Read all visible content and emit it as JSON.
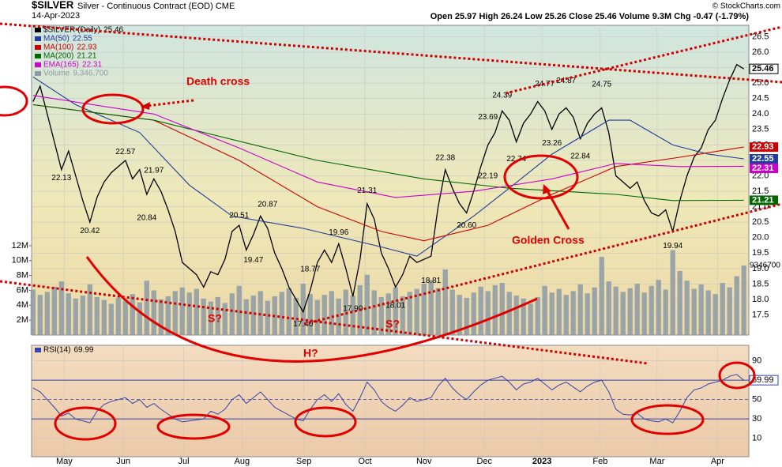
{
  "chart_data": {
    "type": "stock",
    "symbol": "$SILVER",
    "title": "Silver - Continuous Contract (EOD) CME",
    "date": "14-Apr-2023",
    "quote": "Open 25.97 High 26.24 Low 25.26 Close 25.46 Volume 9.3M Chg -0.47 (-1.79%)",
    "credit": "© StockCharts.com",
    "annotations": {
      "death_cross": "Death cross",
      "golden_cross": "Golden Cross",
      "s1": "S?",
      "s2": "S?",
      "h": "H?"
    },
    "xlim": [
      -0.2,
      100.7
    ],
    "xticks": [
      {
        "value": 4.4,
        "label": "May"
      },
      {
        "value": 12.7,
        "label": "Jun"
      },
      {
        "value": 21.2,
        "label": "Jul"
      },
      {
        "value": 29.4,
        "label": "Aug"
      },
      {
        "value": 38.1,
        "label": "Sep"
      },
      {
        "value": 46.7,
        "label": "Oct"
      },
      {
        "value": 55,
        "label": "Nov"
      },
      {
        "value": 63.5,
        "label": "Dec"
      },
      {
        "value": 71.6,
        "label": "2023"
      },
      {
        "value": 79.8,
        "label": "Feb"
      },
      {
        "value": 87.8,
        "label": "Mar"
      },
      {
        "value": 96.3,
        "label": "Apr"
      }
    ],
    "x": [
      0,
      1,
      2,
      3,
      4,
      5,
      6,
      7,
      8,
      9,
      10,
      11,
      12,
      13,
      14,
      15,
      16,
      17,
      18,
      19,
      20,
      21,
      22,
      23,
      24,
      25,
      26,
      27,
      28,
      29,
      30,
      31,
      32,
      33,
      34,
      35,
      36,
      37,
      38,
      39,
      40,
      41,
      42,
      43,
      44,
      45,
      46,
      47,
      48,
      49,
      50,
      51,
      52,
      53,
      54,
      55,
      56,
      57,
      58,
      59,
      60,
      61,
      62,
      63,
      64,
      65,
      66,
      67,
      68,
      69,
      70,
      71,
      72,
      73,
      74,
      75,
      76,
      77,
      78,
      79,
      80,
      81,
      82,
      83,
      84,
      85,
      86,
      87,
      88,
      89,
      90,
      91,
      92,
      93,
      94,
      95,
      96,
      97,
      98,
      99,
      100
    ],
    "ylim": [
      16.85,
      26.87
    ],
    "yticks": [
      17.5,
      {
        "value": 18,
        "label": "18.0"
      },
      18.5,
      {
        "value": 19,
        "label": "19.0"
      },
      19.5,
      {
        "value": 20,
        "label": "20.0"
      },
      20.5,
      {
        "value": 21,
        "label": "21.0"
      },
      21.5,
      {
        "value": 22,
        "label": "22.0"
      },
      22.5,
      {
        "value": 23,
        "label": "23.0"
      },
      23.5,
      {
        "value": 24,
        "label": "24.0"
      },
      24.5,
      {
        "value": 25,
        "label": "25.0"
      },
      25.5,
      {
        "value": 26,
        "label": "26.0"
      },
      26.5
    ],
    "series": [
      {
        "name": "$SILVER (Daily)",
        "color": "#000000",
        "values": [
          24.4,
          24.9,
          24.0,
          23.1,
          22.2,
          22.8,
          22.0,
          21.2,
          20.5,
          21.3,
          21.8,
          22.1,
          22.3,
          22.5,
          21.9,
          22.2,
          21.4,
          21.9,
          21.5,
          20.9,
          20.2,
          19.2,
          19.0,
          18.8,
          18.4,
          18.9,
          18.8,
          19.3,
          20.2,
          20.4,
          19.6,
          20.1,
          20.7,
          20.3,
          19.5,
          19.0,
          18.4,
          18.0,
          17.6,
          18.3,
          19.2,
          19.6,
          19.2,
          19.8,
          19.0,
          18.1,
          19.3,
          21.1,
          20.6,
          19.5,
          19.0,
          18.4,
          18.8,
          19.4,
          19.2,
          19.3,
          19.4,
          21.0,
          22.2,
          21.6,
          21.1,
          20.8,
          21.5,
          22.3,
          23.0,
          23.4,
          24.1,
          23.8,
          23.1,
          23.7,
          24.0,
          24.4,
          24.1,
          23.5,
          24.0,
          24.2,
          23.9,
          23.2,
          23.7,
          24.0,
          24.2,
          23.4,
          22.0,
          21.8,
          21.6,
          21.8,
          21.2,
          20.8,
          20.7,
          20.9,
          20.2,
          21.2,
          22.0,
          22.6,
          22.9,
          23.5,
          23.8,
          24.5,
          25.1,
          25.6,
          25.46
        ]
      },
      {
        "name": "MA(50)",
        "color": "#1f3d99",
        "x": [
          0,
          6,
          15,
          22,
          28,
          38,
          49,
          54,
          62,
          67,
          73,
          81,
          84,
          90,
          95,
          100
        ],
        "values": [
          25.2,
          24.3,
          23.4,
          21.7,
          20.7,
          20.3,
          19.7,
          19.4,
          20.7,
          21.6,
          22.7,
          23.8,
          23.8,
          23.0,
          22.7,
          22.55
        ]
      },
      {
        "name": "MA(100)",
        "color": "#cc0000",
        "x": [
          0,
          17,
          29,
          40,
          49,
          55,
          64,
          73,
          82,
          91,
          100
        ],
        "values": [
          24.3,
          23.8,
          22.5,
          21.0,
          20.2,
          19.9,
          20.4,
          21.4,
          22.3,
          22.6,
          22.93
        ]
      },
      {
        "name": "MA(200)",
        "color": "#006600",
        "x": [
          0,
          17,
          40,
          55,
          67,
          82,
          90,
          100
        ],
        "values": [
          24.3,
          23.8,
          22.5,
          21.9,
          21.6,
          21.4,
          21.2,
          21.21
        ]
      },
      {
        "name": "EMA(165)",
        "color": "#cc00cc",
        "x": [
          0,
          17,
          29,
          40,
          51,
          62,
          73,
          82,
          91,
          100
        ],
        "values": [
          24.6,
          24.0,
          22.9,
          21.8,
          21.3,
          21.5,
          21.9,
          22.4,
          22.3,
          22.31
        ]
      }
    ],
    "price_labels": {
      "x": [
        4,
        8,
        13,
        17,
        16,
        29,
        31,
        33,
        39,
        43,
        38,
        45,
        47,
        51,
        56,
        58,
        61,
        64,
        64,
        66,
        68,
        72,
        73,
        75,
        77,
        80,
        90
      ],
      "values": [
        22.13,
        20.42,
        22.57,
        21.97,
        20.84,
        20.51,
        19.47,
        20.87,
        18.77,
        19.96,
        17.4,
        17.9,
        21.31,
        18.01,
        18.81,
        22.38,
        20.6,
        22.19,
        23.69,
        24.39,
        22.74,
        24.77,
        23.26,
        24.87,
        22.84,
        24.75,
        19.94
      ],
      "value_labels": [
        "22.13",
        "20.42",
        "22.57",
        "21.97",
        "20.84",
        "20.51",
        "19.47",
        "20.87",
        "18.77",
        "19.96",
        "17.40",
        "17.90",
        "21.31",
        "18.01",
        "18.81",
        "22.38",
        "20.60",
        "22.19",
        "23.69",
        "24.39",
        "22.74",
        "24.77",
        "23.26",
        "24.87",
        "22.84",
        "24.75",
        "19.94"
      ]
    },
    "volume": {
      "name": "Volume",
      "color": "#8c9aa6",
      "last_label": "9,346,700",
      "ylim": [
        0,
        41600000
      ],
      "yticks": [
        {
          "value": 2000000,
          "label": "2M"
        },
        {
          "value": 4000000,
          "label": "4M"
        },
        {
          "value": 6000000,
          "label": "6M"
        },
        {
          "value": 8000000,
          "label": "8M"
        },
        {
          "value": 10000000,
          "label": "10M"
        },
        {
          "value": 12000000,
          "label": "12M"
        }
      ],
      "values": [
        6100000,
        5400000,
        5800000,
        6500000,
        7200000,
        5600000,
        4900000,
        5300000,
        6800000,
        5100000,
        4700000,
        4200000,
        5000000,
        4600000,
        5500000,
        4400000,
        7300000,
        6000000,
        4800000,
        5200000,
        5900000,
        6400000,
        5700000,
        6200000,
        4900000,
        4500000,
        5100000,
        4300000,
        5600000,
        6600000,
        4800000,
        5300000,
        5900000,
        4600000,
        5200000,
        5800000,
        6300000,
        5000000,
        6900000,
        5500000,
        4700000,
        5400000,
        5900000,
        4900000,
        6100000,
        5300000,
        6700000,
        8100000,
        6000000,
        5100000,
        5600000,
        6400000,
        5200000,
        5800000,
        6200000,
        6900000,
        7400000,
        6300000,
        8800000,
        6100000,
        5400000,
        5000000,
        5700000,
        6500000,
        5900000,
        6700000,
        7000000,
        5800000,
        5300000,
        4900000,
        4200000,
        5100000,
        6600000,
        5700000,
        6200000,
        5400000,
        5900000,
        6800000,
        5600000,
        6400000,
        10500000,
        7200000,
        6500000,
        5800000,
        6300000,
        6900000,
        5700000,
        6600000,
        7400000,
        6100000,
        11400000,
        8600000,
        7300000,
        6200000,
        6800000,
        6000000,
        5500000,
        7000000,
        6400000,
        7900000,
        9346700
      ]
    },
    "rsi": {
      "name": "RSI(14)",
      "color": "#3344aa",
      "ylim": [
        -9,
        106
      ],
      "yticks": [
        10,
        30,
        50,
        70,
        90
      ],
      "values": [
        62,
        58,
        50,
        42,
        33,
        36,
        30,
        28,
        26,
        38,
        45,
        48,
        50,
        52,
        46,
        50,
        42,
        46,
        40,
        35,
        30,
        27,
        28,
        29,
        30,
        38,
        35,
        40,
        50,
        55,
        46,
        52,
        58,
        50,
        42,
        38,
        34,
        30,
        28,
        40,
        50,
        55,
        48,
        56,
        45,
        38,
        52,
        68,
        60,
        48,
        42,
        38,
        44,
        52,
        48,
        50,
        52,
        64,
        72,
        62,
        55,
        50,
        58,
        65,
        70,
        72,
        74,
        68,
        60,
        66,
        68,
        72,
        66,
        60,
        65,
        68,
        63,
        58,
        64,
        68,
        70,
        58,
        40,
        35,
        34,
        36,
        30,
        28,
        27,
        30,
        26,
        38,
        52,
        60,
        62,
        66,
        68,
        70,
        74,
        76,
        69.99
      ]
    }
  }
}
